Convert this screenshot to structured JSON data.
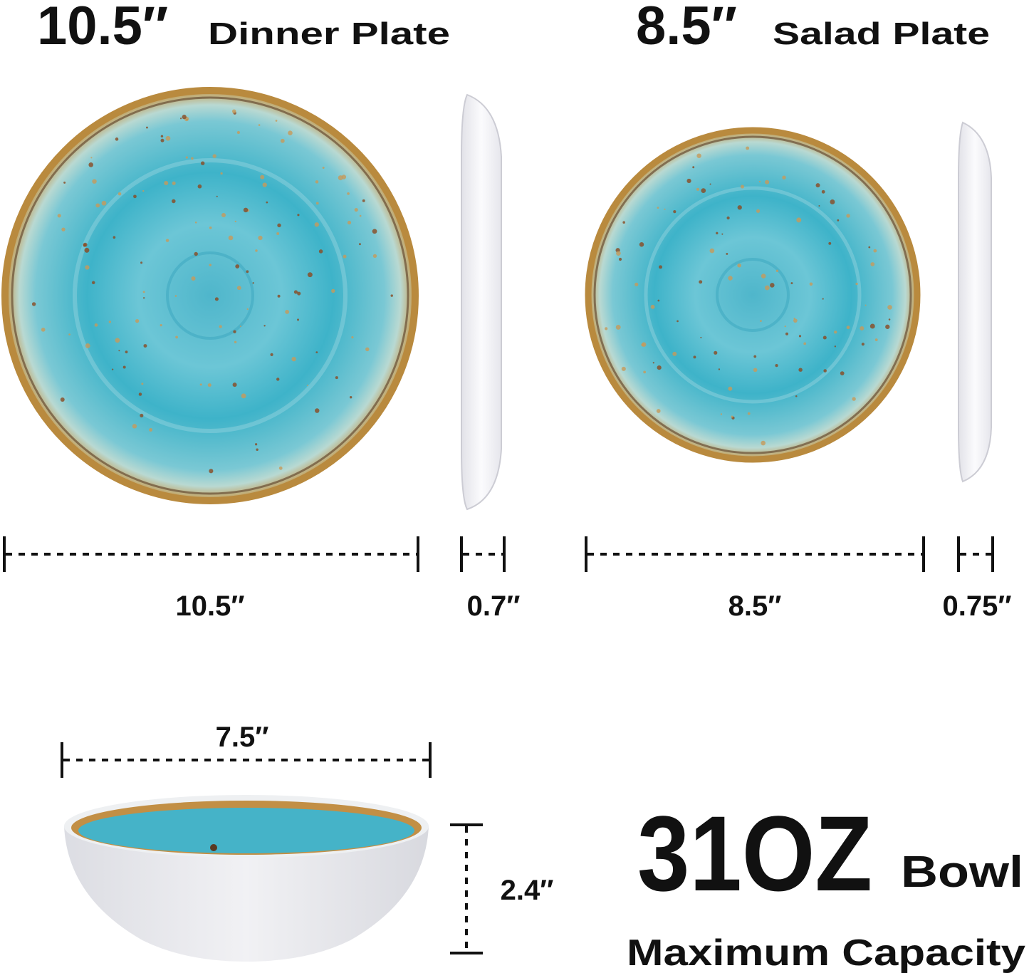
{
  "headings": [
    {
      "size": "10.5″",
      "label": "Dinner Plate"
    },
    {
      "size": "8.5″",
      "label": "Salad Plate"
    }
  ],
  "dimensions": [
    "10.5″",
    "0.7″",
    "8.5″",
    "0.75″",
    "7.5″",
    "2.4″"
  ],
  "capacity": {
    "amount": "31OZ",
    "label": "Bowl",
    "note": "Maximum Capacity"
  }
}
